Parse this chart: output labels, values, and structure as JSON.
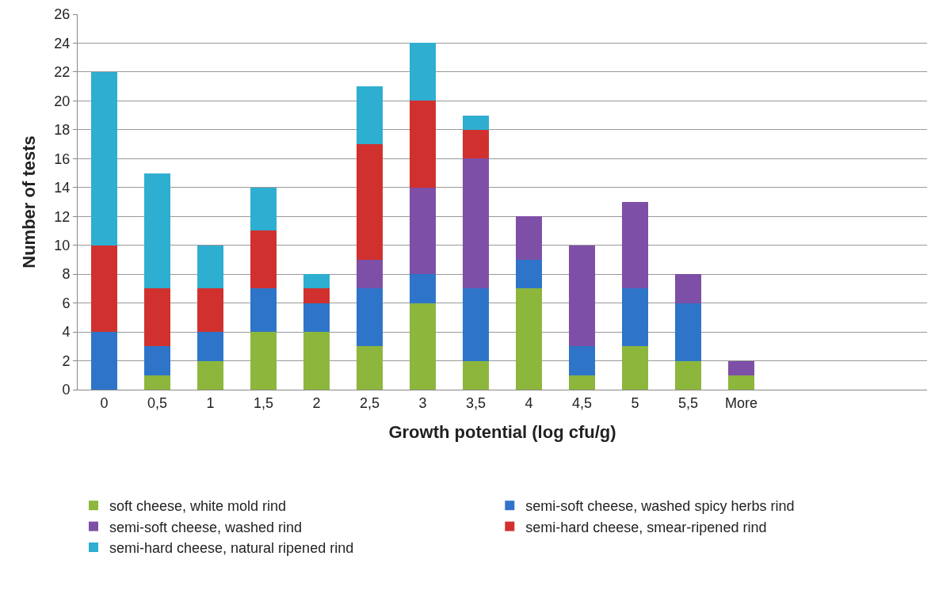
{
  "chart_data": {
    "type": "bar",
    "stacked": true,
    "xlabel": "Growth potential (log cfu/g)",
    "ylabel": "Number of tests",
    "categories": [
      "0",
      "0,5",
      "1",
      "1,5",
      "2",
      "2,5",
      "3",
      "3,5",
      "4",
      "4,5",
      "5",
      "5,5",
      "More",
      null,
      null,
      null
    ],
    "series": [
      {
        "name": "soft cheese, white mold rind",
        "color": "#8db63c",
        "values": [
          null,
          1,
          2,
          4,
          4,
          3,
          6,
          2,
          7,
          1,
          3,
          2,
          1,
          null,
          null,
          null
        ]
      },
      {
        "name": "semi-soft cheese, washed spicy herbs rind",
        "color": "#2e75c9",
        "values": [
          4,
          2,
          2,
          3,
          2,
          4,
          2,
          5,
          2,
          2,
          4,
          4,
          null,
          null,
          null,
          null
        ]
      },
      {
        "name": "semi-soft cheese, washed rind",
        "color": "#7e4fa6",
        "values": [
          null,
          null,
          null,
          null,
          null,
          2,
          6,
          9,
          3,
          7,
          6,
          2,
          1,
          null,
          null,
          null
        ]
      },
      {
        "name": "semi-hard cheese, smear-ripened rind",
        "color": "#d0312f",
        "values": [
          6,
          4,
          3,
          4,
          1,
          8,
          6,
          2,
          null,
          null,
          null,
          null,
          null,
          null,
          null,
          null
        ]
      },
      {
        "name": "semi-hard cheese, natural ripened rind",
        "color": "#2eaed0",
        "values": [
          12,
          8,
          3,
          3,
          1,
          4,
          4,
          1,
          null,
          null,
          null,
          null,
          null,
          null,
          null,
          null
        ]
      }
    ],
    "ylim": [
      0,
      26
    ],
    "yticks": [
      0,
      2,
      4,
      6,
      8,
      10,
      12,
      14,
      16,
      18,
      20,
      22,
      24,
      26
    ],
    "grid": "y",
    "legend": "bottom"
  }
}
